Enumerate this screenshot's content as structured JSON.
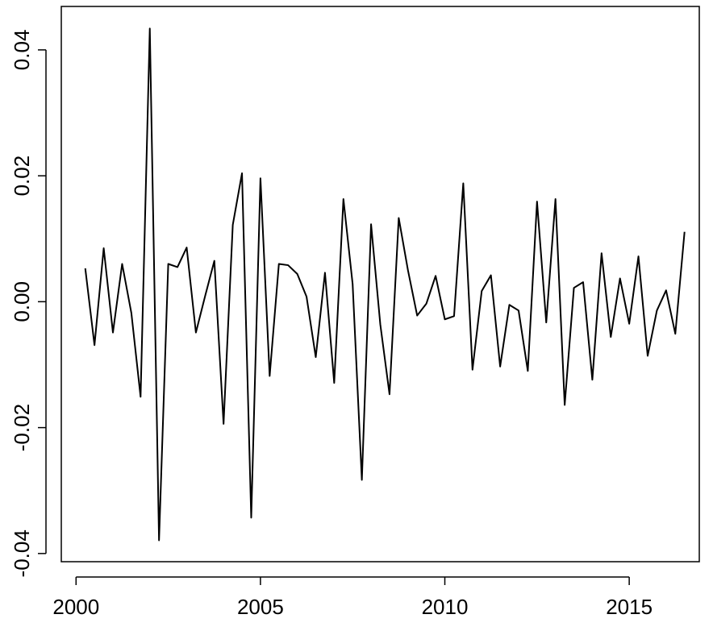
{
  "chart_data": {
    "type": "line",
    "color": "#000000",
    "x": [
      2000.25,
      2000.5,
      2000.75,
      2001,
      2001.25,
      2001.5,
      2001.75,
      2002,
      2002.25,
      2002.5,
      2002.75,
      2003,
      2003.25,
      2003.5,
      2003.75,
      2004,
      2004.25,
      2004.5,
      2004.75,
      2005,
      2005.25,
      2005.5,
      2005.75,
      2006,
      2006.25,
      2006.5,
      2006.75,
      2007,
      2007.25,
      2007.5,
      2007.75,
      2008,
      2008.25,
      2008.5,
      2008.75,
      2009,
      2009.25,
      2009.5,
      2009.75,
      2010,
      2010.25,
      2010.5,
      2010.75,
      2011,
      2011.25,
      2011.5,
      2011.75,
      2012,
      2012.25,
      2012.5,
      2012.75,
      2013,
      2013.25,
      2013.5,
      2013.75,
      2014,
      2014.25,
      2014.5,
      2014.75,
      2015,
      2015.25,
      2015.5,
      2015.75,
      2016,
      2016.25,
      2016.5
    ],
    "values": [
      0.0053,
      -0.0069,
      0.0085,
      -0.0049,
      0.006,
      -0.0018,
      -0.0151,
      0.0434,
      -0.0379,
      0.006,
      0.0055,
      0.0086,
      -0.0049,
      0.0009,
      0.0065,
      -0.0194,
      0.0122,
      0.0204,
      -0.0343,
      0.0196,
      -0.0118,
      0.006,
      0.0058,
      0.0044,
      0.0008,
      -0.0088,
      0.0046,
      -0.0129,
      0.0163,
      0.0028,
      -0.0283,
      0.0123,
      -0.0036,
      -0.0147,
      0.0133,
      0.005,
      -0.0022,
      -0.0003,
      0.0041,
      -0.0028,
      -0.0023,
      0.0188,
      -0.0108,
      0.0017,
      0.0042,
      -0.0103,
      -0.0005,
      -0.0014,
      -0.011,
      0.0159,
      -0.0033,
      0.0163,
      -0.0164,
      0.0022,
      0.0031,
      -0.0124,
      0.0077,
      -0.0056,
      0.0037,
      -0.0035,
      0.0072,
      -0.0086,
      -0.0014,
      0.0018,
      -0.0051,
      0.0111
    ],
    "xlim": [
      1999.6,
      2016.9
    ],
    "ylim": [
      -0.0413,
      0.0469
    ],
    "xticks": [
      2000,
      2005,
      2010,
      2015
    ],
    "yticks": [
      {
        "value": -0.04,
        "label": "-0.04"
      },
      {
        "value": -0.02,
        "label": "-0.02"
      },
      {
        "value": 0,
        "label": "0.00"
      },
      {
        "value": 0.02,
        "label": "0.02"
      },
      {
        "value": 0.04,
        "label": "0.04"
      }
    ]
  }
}
